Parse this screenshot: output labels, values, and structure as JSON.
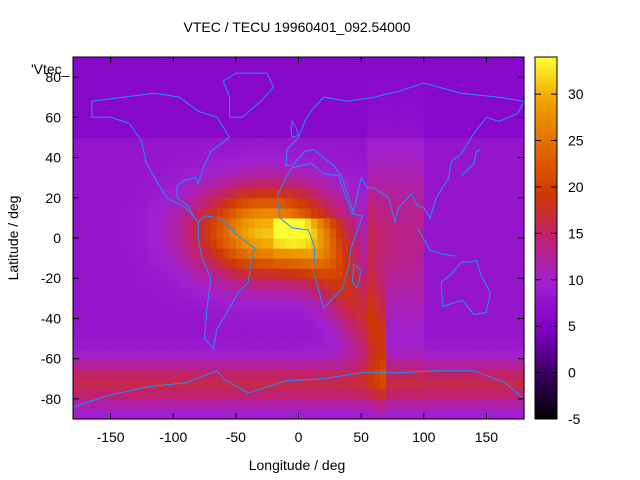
{
  "chart_data": {
    "type": "heatmap",
    "title": "VTEC / TECU 19960401_092.54000",
    "xlabel": "Longitude / deg",
    "ylabel": "Latitude / deg",
    "xlim": [
      -180,
      180
    ],
    "ylim": [
      -90,
      90
    ],
    "xticks": [
      -150,
      -100,
      -50,
      0,
      50,
      100,
      150
    ],
    "yticks": [
      -80,
      -60,
      -40,
      -20,
      0,
      20,
      40,
      60,
      80
    ],
    "colorbar": {
      "min": -5,
      "max": 34,
      "ticks": [
        -5,
        0,
        5,
        10,
        15,
        20,
        25,
        30
      ]
    },
    "series_key": "'Vtec_",
    "colormap": {
      "name": "gnuplot-pm3d",
      "stops": [
        "#000000",
        "#3a0060",
        "#7f00c8",
        "#a020d0",
        "#c02070",
        "#d03a00",
        "#e06a00",
        "#f0a000",
        "#ffff30"
      ]
    },
    "field": {
      "description": "approximate vertical total electron content, TECU, reconstructed on a coarse grid",
      "lon_step": 10,
      "lat_step": 10,
      "background_tecu": 8,
      "peak_tecu": 31,
      "peak_lon": -25,
      "peak_lat": 3
    },
    "coastline_color": "#1e90ff"
  }
}
